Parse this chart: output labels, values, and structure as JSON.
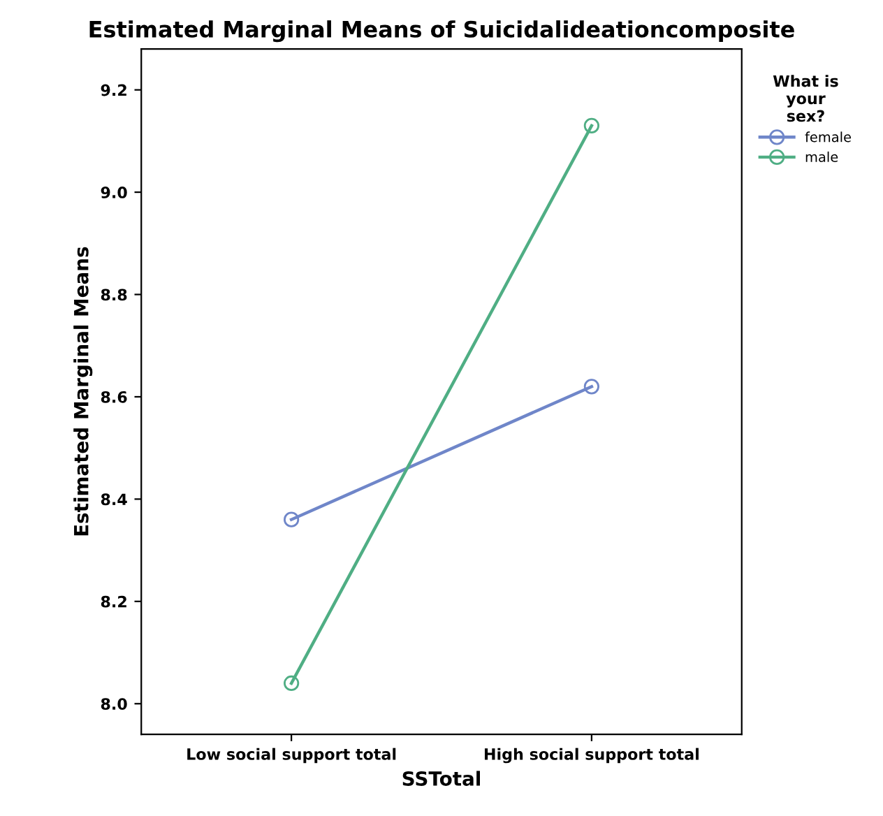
{
  "chart_data": {
    "type": "line",
    "title": "Estimated Marginal Means of Suicidalideationcomposite",
    "xlabel": "SSTotal",
    "ylabel": "Estimated Marginal Means",
    "legend_title": "What is\nyour\nsex?",
    "categories": [
      "Low social support total",
      "High social support total"
    ],
    "series": [
      {
        "name": "female",
        "color": "#6f86c9",
        "values": [
          8.36,
          8.62
        ]
      },
      {
        "name": "male",
        "color": "#4fae84",
        "values": [
          8.04,
          9.13
        ]
      }
    ],
    "ylim": [
      7.94,
      9.28
    ],
    "yticks": [
      {
        "value": 8.0,
        "label": "8.0"
      },
      {
        "value": 8.2,
        "label": "8.2"
      },
      {
        "value": 8.4,
        "label": "8.4"
      },
      {
        "value": 8.6,
        "label": "8.6"
      },
      {
        "value": 8.8,
        "label": "8.8"
      },
      {
        "value": 9.0,
        "label": "9.0"
      },
      {
        "value": 9.2,
        "label": "9.2"
      }
    ],
    "marker": "circle",
    "line_style": "solid",
    "grid": false,
    "legend": "right"
  }
}
